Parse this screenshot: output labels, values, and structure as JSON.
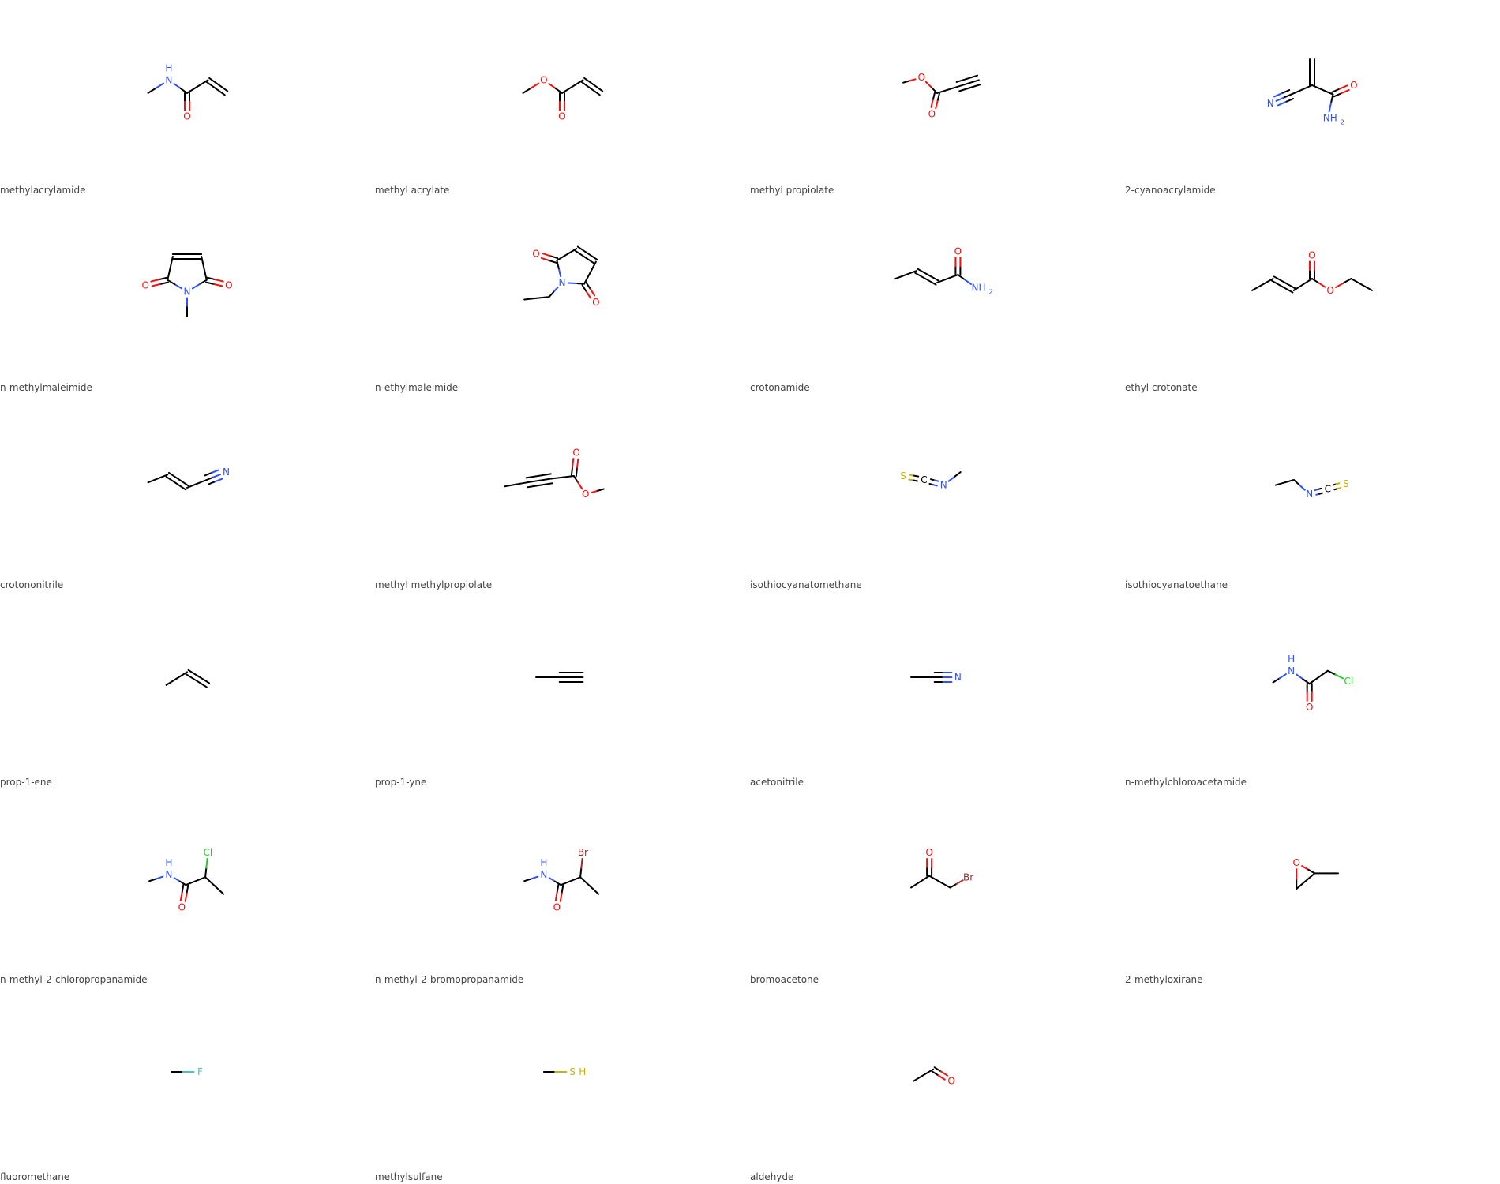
{
  "colors": {
    "C": "#000000",
    "O": "#ff0d0d",
    "N": "#3050f8",
    "S": "#c8b400",
    "Cl": "#1fd01f",
    "Br": "#a62929",
    "F": "#3dc8c8",
    "caption": "#444444"
  },
  "molecules": [
    {
      "name": "methylacrylamide",
      "atoms": [
        [
          "C",
          -1.5,
          0.3
        ],
        [
          "N",
          -0.7,
          -0.2
        ],
        [
          "C",
          0,
          0.3
        ],
        [
          "O",
          0,
          1.2
        ],
        [
          "C",
          0.8,
          -0.2
        ],
        [
          "C",
          1.5,
          0.3
        ]
      ],
      "bonds": [
        [
          0,
          1,
          1
        ],
        [
          1,
          2,
          1
        ],
        [
          2,
          3,
          2
        ],
        [
          2,
          4,
          1
        ],
        [
          4,
          5,
          2
        ]
      ],
      "labels": [
        {
          "atom": 1,
          "text": "H",
          "dx": 0,
          "dy": -0.45
        }
      ]
    },
    {
      "name": "methyl acrylate",
      "atoms": [
        [
          "C",
          -1.5,
          0.3
        ],
        [
          "O",
          -0.7,
          -0.2
        ],
        [
          "C",
          0,
          0.3
        ],
        [
          "O",
          0,
          1.2
        ],
        [
          "C",
          0.8,
          -0.2
        ],
        [
          "C",
          1.5,
          0.3
        ]
      ],
      "bonds": [
        [
          0,
          1,
          1
        ],
        [
          1,
          2,
          1
        ],
        [
          2,
          3,
          2
        ],
        [
          2,
          4,
          1
        ],
        [
          4,
          5,
          2
        ]
      ],
      "labels": []
    },
    {
      "name": "methyl propiolate",
      "atoms": [
        [
          "C",
          -1.3,
          -0.1
        ],
        [
          "O",
          -0.6,
          -0.3
        ],
        [
          "C",
          0,
          0.3
        ],
        [
          "O",
          -0.2,
          1.1
        ],
        [
          "C",
          0.8,
          0.05
        ],
        [
          "C",
          1.6,
          -0.2
        ]
      ],
      "bonds": [
        [
          0,
          1,
          1
        ],
        [
          1,
          2,
          1
        ],
        [
          2,
          3,
          2
        ],
        [
          2,
          4,
          1
        ],
        [
          4,
          5,
          3
        ]
      ],
      "labels": []
    },
    {
      "name": "2-cyanoacrylamide",
      "atoms": [
        [
          "C",
          0,
          0
        ],
        [
          "C",
          0,
          -1
        ],
        [
          "C",
          -0.8,
          0.35
        ],
        [
          "N",
          -1.6,
          0.7
        ],
        [
          "C",
          0.8,
          0.35
        ],
        [
          "O",
          1.6,
          0
        ],
        [
          "N",
          0.6,
          1.25
        ]
      ],
      "bonds": [
        [
          0,
          1,
          2
        ],
        [
          0,
          2,
          1
        ],
        [
          2,
          3,
          3
        ],
        [
          0,
          4,
          1
        ],
        [
          4,
          5,
          2
        ],
        [
          4,
          6,
          1
        ]
      ],
      "labels": [
        {
          "atom": 6,
          "text": "NH2",
          "special": "nh2"
        }
      ]
    },
    {
      "name": "n-methylmaleimide",
      "atoms": [
        [
          "N",
          0,
          0.35
        ],
        [
          "C",
          -0.75,
          -0.1
        ],
        [
          "C",
          -0.55,
          -1.0
        ],
        [
          "C",
          0.55,
          -1.0
        ],
        [
          "C",
          0.75,
          -0.1
        ],
        [
          "O",
          -1.6,
          0.1
        ],
        [
          "O",
          1.6,
          0.1
        ],
        [
          "C",
          0,
          1.3
        ]
      ],
      "bonds": [
        [
          0,
          1,
          1
        ],
        [
          1,
          2,
          1
        ],
        [
          2,
          3,
          2
        ],
        [
          3,
          4,
          1
        ],
        [
          4,
          0,
          1
        ],
        [
          1,
          5,
          2
        ],
        [
          4,
          6,
          2
        ],
        [
          0,
          7,
          1
        ]
      ],
      "labels": []
    },
    {
      "name": "n-ethylmaleimide",
      "atoms": [
        [
          "N",
          0,
          0
        ],
        [
          "C",
          -0.2,
          -0.85
        ],
        [
          "C",
          0.55,
          -1.3
        ],
        [
          "C",
          1.3,
          -0.8
        ],
        [
          "C",
          0.85,
          0.05
        ],
        [
          "O",
          -1.0,
          -1.1
        ],
        [
          "O",
          1.3,
          0.75
        ],
        [
          "C",
          -0.5,
          0.55
        ],
        [
          "C",
          -1.45,
          0.65
        ]
      ],
      "bonds": [
        [
          0,
          1,
          1
        ],
        [
          1,
          2,
          1
        ],
        [
          2,
          3,
          2
        ],
        [
          3,
          4,
          1
        ],
        [
          4,
          0,
          1
        ],
        [
          1,
          5,
          2
        ],
        [
          4,
          6,
          2
        ],
        [
          0,
          7,
          1
        ],
        [
          7,
          8,
          1
        ]
      ],
      "labels": []
    },
    {
      "name": "crotonamide",
      "atoms": [
        [
          "C",
          -1.6,
          -0.15
        ],
        [
          "C",
          -0.8,
          -0.45
        ],
        [
          "C",
          0,
          0
        ],
        [
          "C",
          0.8,
          -0.3
        ],
        [
          "O",
          0.8,
          -1.2
        ],
        [
          "N",
          1.5,
          0.2
        ]
      ],
      "bonds": [
        [
          0,
          1,
          1
        ],
        [
          1,
          2,
          2
        ],
        [
          2,
          3,
          1
        ],
        [
          3,
          4,
          2
        ],
        [
          3,
          5,
          1
        ]
      ],
      "labels": [
        {
          "atom": 5,
          "text": "NH2",
          "special": "nh2h"
        }
      ]
    },
    {
      "name": "ethyl crotonate",
      "atoms": [
        [
          "C",
          -2.3,
          0.3
        ],
        [
          "C",
          -1.5,
          -0.15
        ],
        [
          "C",
          -0.7,
          0.3
        ],
        [
          "C",
          0,
          -0.15
        ],
        [
          "O",
          0,
          -1.05
        ],
        [
          "O",
          0.7,
          0.3
        ],
        [
          "C",
          1.5,
          -0.15
        ],
        [
          "C",
          2.3,
          0.3
        ]
      ],
      "bonds": [
        [
          0,
          1,
          1
        ],
        [
          1,
          2,
          2
        ],
        [
          2,
          3,
          1
        ],
        [
          3,
          4,
          2
        ],
        [
          3,
          5,
          1
        ],
        [
          5,
          6,
          1
        ],
        [
          6,
          7,
          1
        ]
      ],
      "labels": []
    },
    {
      "name": "crotononitrile",
      "atoms": [
        [
          "C",
          -1.5,
          0.1
        ],
        [
          "C",
          -0.75,
          -0.2
        ],
        [
          "C",
          0,
          0.3
        ],
        [
          "C",
          0.75,
          0
        ],
        [
          "N",
          1.5,
          -0.3
        ]
      ],
      "bonds": [
        [
          0,
          1,
          1
        ],
        [
          1,
          2,
          2
        ],
        [
          2,
          3,
          1
        ],
        [
          3,
          4,
          3
        ]
      ],
      "labels": []
    },
    {
      "name": "methyl methylpropiolate",
      "atoms": [
        [
          "C",
          -2.2,
          0.25
        ],
        [
          "C",
          -1.35,
          0.1
        ],
        [
          "C",
          -0.4,
          -0.05
        ],
        [
          "C",
          0.45,
          -0.15
        ],
        [
          "O",
          0.55,
          -1.05
        ],
        [
          "O",
          0.9,
          0.55
        ],
        [
          "C",
          1.6,
          0.35
        ]
      ],
      "bonds": [
        [
          0,
          1,
          1
        ],
        [
          1,
          2,
          3
        ],
        [
          2,
          3,
          1
        ],
        [
          3,
          4,
          2
        ],
        [
          3,
          5,
          1
        ],
        [
          5,
          6,
          1
        ]
      ],
      "labels": []
    },
    {
      "name": "isothiocyanatomethane",
      "atoms": [
        [
          "S",
          -1.3,
          -0.15
        ],
        [
          "C",
          -0.5,
          0
        ],
        [
          "N",
          0.25,
          0.2
        ],
        [
          "C",
          0.9,
          -0.3
        ]
      ],
      "bonds": [
        [
          0,
          1,
          2
        ],
        [
          1,
          2,
          2
        ],
        [
          2,
          3,
          1
        ]
      ],
      "labels": []
    },
    {
      "name": "isothiocyanatoethane",
      "atoms": [
        [
          "C",
          -1.4,
          0.2
        ],
        [
          "C",
          -0.7,
          0
        ],
        [
          "N",
          -0.1,
          0.55
        ],
        [
          "C",
          0.6,
          0.35
        ],
        [
          "S",
          1.3,
          0.15
        ]
      ],
      "bonds": [
        [
          0,
          1,
          1
        ],
        [
          1,
          2,
          1
        ],
        [
          2,
          3,
          2
        ],
        [
          3,
          4,
          2
        ]
      ],
      "labels": []
    },
    {
      "name": "prop-1-ene",
      "atoms": [
        [
          "C",
          -0.8,
          0.3
        ],
        [
          "C",
          0,
          -0.2
        ],
        [
          "C",
          0.8,
          0.3
        ]
      ],
      "bonds": [
        [
          0,
          1,
          1
        ],
        [
          1,
          2,
          2
        ]
      ],
      "labels": []
    },
    {
      "name": "prop-1-yne",
      "atoms": [
        [
          "C",
          -1.0,
          0
        ],
        [
          "C",
          -0.1,
          0
        ],
        [
          "C",
          0.8,
          0
        ]
      ],
      "bonds": [
        [
          0,
          1,
          1
        ],
        [
          1,
          2,
          3
        ]
      ],
      "labels": []
    },
    {
      "name": "acetonitrile",
      "atoms": [
        [
          "C",
          -1.0,
          0
        ],
        [
          "C",
          -0.1,
          0
        ],
        [
          "N",
          0.8,
          0
        ]
      ],
      "bonds": [
        [
          0,
          1,
          1
        ],
        [
          1,
          2,
          3
        ]
      ],
      "labels": []
    },
    {
      "name": "n-methylchloroacetamide",
      "atoms": [
        [
          "C",
          -1.5,
          0.2
        ],
        [
          "N",
          -0.8,
          -0.25
        ],
        [
          "C",
          -0.1,
          0.25
        ],
        [
          "O",
          -0.1,
          1.15
        ],
        [
          "C",
          0.6,
          -0.25
        ],
        [
          "Cl",
          1.4,
          0.15
        ]
      ],
      "bonds": [
        [
          0,
          1,
          1
        ],
        [
          1,
          2,
          1
        ],
        [
          2,
          3,
          2
        ],
        [
          2,
          4,
          1
        ],
        [
          4,
          5,
          1
        ]
      ],
      "labels": [
        {
          "atom": 1,
          "text": "H",
          "dx": 0,
          "dy": -0.45
        }
      ]
    },
    {
      "name": "n-methyl-2-chloropropanamide",
      "atoms": [
        [
          "C",
          -1.45,
          0.25
        ],
        [
          "N",
          -0.7,
          0
        ],
        [
          "C",
          -0.05,
          0.4
        ],
        [
          "O",
          -0.2,
          1.25
        ],
        [
          "C",
          0.7,
          0.1
        ],
        [
          "Cl",
          0.8,
          -0.85
        ],
        [
          "C",
          1.4,
          0.75
        ]
      ],
      "bonds": [
        [
          0,
          1,
          1
        ],
        [
          1,
          2,
          1
        ],
        [
          2,
          3,
          2
        ],
        [
          2,
          4,
          1
        ],
        [
          4,
          5,
          1
        ],
        [
          4,
          6,
          1
        ]
      ],
      "labels": [
        {
          "atom": 1,
          "text": "H",
          "dx": 0,
          "dy": -0.45
        }
      ]
    },
    {
      "name": "n-methyl-2-bromopropanamide",
      "atoms": [
        [
          "C",
          -1.45,
          0.25
        ],
        [
          "N",
          -0.7,
          0
        ],
        [
          "C",
          -0.05,
          0.4
        ],
        [
          "O",
          -0.2,
          1.25
        ],
        [
          "C",
          0.7,
          0.1
        ],
        [
          "Br",
          0.8,
          -0.85
        ],
        [
          "C",
          1.4,
          0.75
        ]
      ],
      "bonds": [
        [
          0,
          1,
          1
        ],
        [
          1,
          2,
          1
        ],
        [
          2,
          3,
          2
        ],
        [
          2,
          4,
          1
        ],
        [
          4,
          5,
          1
        ],
        [
          4,
          6,
          1
        ]
      ],
      "labels": [
        {
          "atom": 1,
          "text": "H",
          "dx": 0,
          "dy": -0.45
        }
      ]
    },
    {
      "name": "bromoacetone",
      "atoms": [
        [
          "C",
          -1.0,
          0.5
        ],
        [
          "C",
          -0.3,
          0.05
        ],
        [
          "O",
          -0.3,
          -0.85
        ],
        [
          "C",
          0.5,
          0.5
        ],
        [
          "Br",
          1.2,
          0.1
        ]
      ],
      "bonds": [
        [
          0,
          1,
          1
        ],
        [
          1,
          2,
          2
        ],
        [
          1,
          3,
          1
        ],
        [
          3,
          4,
          1
        ]
      ],
      "labels": []
    },
    {
      "name": "2-methyloxirane",
      "atoms": [
        [
          "O",
          -0.6,
          -0.45
        ],
        [
          "C",
          0.1,
          -0.05
        ],
        [
          "C",
          -0.6,
          0.55
        ],
        [
          "C",
          1.0,
          -0.05
        ]
      ],
      "bonds": [
        [
          0,
          1,
          1
        ],
        [
          1,
          2,
          1
        ],
        [
          2,
          0,
          1
        ],
        [
          1,
          3,
          1
        ]
      ],
      "labels": []
    },
    {
      "name": "fluoromethane",
      "atoms": [
        [
          "C",
          -0.6,
          0
        ],
        [
          "F",
          0.5,
          0
        ]
      ],
      "bonds": [
        [
          0,
          1,
          1
        ]
      ],
      "labels": []
    },
    {
      "name": "methylsulfane",
      "atoms": [
        [
          "C",
          -0.7,
          0
        ],
        [
          "S",
          0.4,
          0
        ]
      ],
      "bonds": [
        [
          0,
          1,
          1
        ]
      ],
      "labels": [
        {
          "atom": 1,
          "text": "H",
          "dx": 0.38,
          "dy": 0,
          "inline": true
        }
      ]
    },
    {
      "name": "aldehyde",
      "atoms": [
        [
          "C",
          -0.9,
          0.35
        ],
        [
          "C",
          -0.15,
          -0.1
        ],
        [
          "O",
          0.55,
          0.35
        ]
      ],
      "bonds": [
        [
          0,
          1,
          1
        ],
        [
          1,
          2,
          2
        ]
      ],
      "labels": []
    }
  ]
}
